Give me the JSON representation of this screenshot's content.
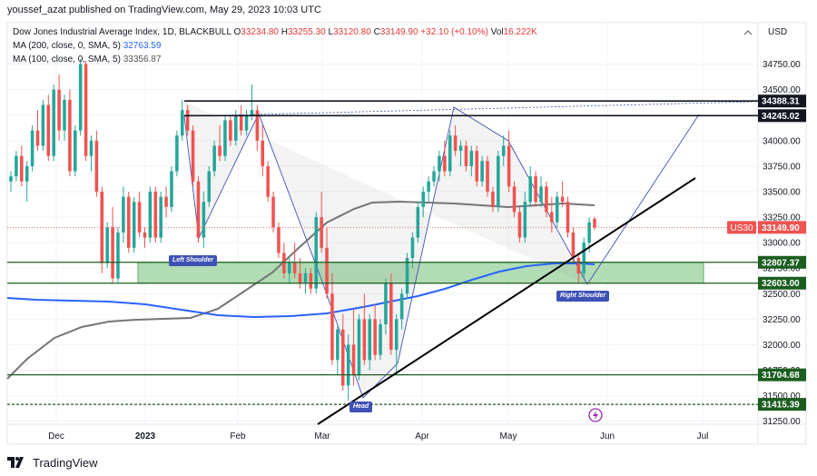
{
  "header": {
    "publisher": "youssef_azat published on TradingView.com, May 29, 2023 10:03 UTC"
  },
  "legend": {
    "symbol_line": "Dow Jones Industrial Average Index, 1D, BLACKBULL",
    "open_label": "O",
    "open": "33234.80",
    "high_label": "H",
    "high": "33255.30",
    "low_label": "L",
    "low": "33120.80",
    "close_label": "C",
    "close": "33149.90",
    "change": "+32.10 (+0.10%)",
    "vol_label": "Vol",
    "vol": "16.222K",
    "ma200_label": "MA (200, close, 0, SMA, 5)",
    "ma200_value": "32763.59",
    "ma100_label": "MA (100, close, 0, SMA, 5)",
    "ma100_value": "33356.87"
  },
  "currency": "USD",
  "footer": {
    "brand": "TradingView",
    "logo_icon": "tradingview-logo-icon"
  },
  "colors": {
    "up": "#26a69a",
    "down": "#ef5350",
    "ma200": "#2962ff",
    "ma100": "#757575",
    "zone": "#a5d6a7",
    "pattern": "#3f51b5",
    "hline": "#1b5e20"
  },
  "chart_data": {
    "type": "candlestick",
    "title": "Dow Jones Industrial Average Index, 1D, BLACKBULL",
    "ylabel": "USD",
    "ylim": [
      31250,
      34900
    ],
    "x_ticks": [
      "Dec",
      "2023",
      "Feb",
      "Mar",
      "Apr",
      "May",
      "Jun",
      "Jul"
    ],
    "y_ticks": [
      31250,
      31500,
      31750,
      32000,
      32250,
      32500,
      32750,
      33000,
      33250,
      33500,
      33750,
      34000,
      34250,
      34500,
      34750
    ],
    "price_labels": [
      {
        "value": "34388.31",
        "style": "black"
      },
      {
        "value": "34245.02",
        "style": "black"
      },
      {
        "value": "33149.90",
        "style": "current",
        "tag": "US30"
      },
      {
        "value": "32807.37",
        "style": "green"
      },
      {
        "value": "32603.00",
        "style": "green"
      },
      {
        "value": "31704.68",
        "style": "green"
      },
      {
        "value": "31415.39",
        "style": "green"
      }
    ],
    "annotations": [
      "Left Shoulder",
      "Head",
      "Right Shoulder"
    ],
    "candles": [
      {
        "o": 33600,
        "h": 33700,
        "l": 33500,
        "c": 33650
      },
      {
        "o": 33650,
        "h": 33900,
        "l": 33600,
        "c": 33850
      },
      {
        "o": 33850,
        "h": 33950,
        "l": 33550,
        "c": 33600
      },
      {
        "o": 33600,
        "h": 33800,
        "l": 33400,
        "c": 33750
      },
      {
        "o": 33750,
        "h": 34150,
        "l": 33700,
        "c": 34100
      },
      {
        "o": 34100,
        "h": 34300,
        "l": 33900,
        "c": 33950
      },
      {
        "o": 33950,
        "h": 34400,
        "l": 33900,
        "c": 34350
      },
      {
        "o": 34350,
        "h": 34450,
        "l": 33800,
        "c": 33850
      },
      {
        "o": 33850,
        "h": 34550,
        "l": 33800,
        "c": 34500
      },
      {
        "o": 34500,
        "h": 34650,
        "l": 34000,
        "c": 34100
      },
      {
        "o": 34100,
        "h": 34450,
        "l": 34000,
        "c": 34400
      },
      {
        "o": 34400,
        "h": 34500,
        "l": 33650,
        "c": 33700
      },
      {
        "o": 33700,
        "h": 34150,
        "l": 33650,
        "c": 34100
      },
      {
        "o": 34100,
        "h": 34800,
        "l": 34050,
        "c": 34750
      },
      {
        "o": 34750,
        "h": 34780,
        "l": 33800,
        "c": 33850
      },
      {
        "o": 33850,
        "h": 34050,
        "l": 33700,
        "c": 34000
      },
      {
        "o": 34000,
        "h": 34100,
        "l": 33450,
        "c": 33500
      },
      {
        "o": 33500,
        "h": 33550,
        "l": 32700,
        "c": 32800
      },
      {
        "o": 32800,
        "h": 33200,
        "l": 32750,
        "c": 33150
      },
      {
        "o": 33150,
        "h": 33350,
        "l": 32600,
        "c": 32650
      },
      {
        "o": 32650,
        "h": 33150,
        "l": 32600,
        "c": 33100
      },
      {
        "o": 33100,
        "h": 33550,
        "l": 33000,
        "c": 33450
      },
      {
        "o": 33450,
        "h": 33500,
        "l": 32900,
        "c": 32950
      },
      {
        "o": 32950,
        "h": 33450,
        "l": 32900,
        "c": 33400
      },
      {
        "o": 33400,
        "h": 33500,
        "l": 33050,
        "c": 33100
      },
      {
        "o": 33100,
        "h": 33150,
        "l": 32950,
        "c": 33050
      },
      {
        "o": 33050,
        "h": 33550,
        "l": 33000,
        "c": 33500
      },
      {
        "o": 33500,
        "h": 33550,
        "l": 33000,
        "c": 33050
      },
      {
        "o": 33050,
        "h": 33500,
        "l": 33000,
        "c": 33450
      },
      {
        "o": 33450,
        "h": 33550,
        "l": 33250,
        "c": 33350
      },
      {
        "o": 33350,
        "h": 33750,
        "l": 33300,
        "c": 33700
      },
      {
        "o": 33700,
        "h": 34100,
        "l": 33650,
        "c": 34050
      },
      {
        "o": 34050,
        "h": 34400,
        "l": 34000,
        "c": 34300
      },
      {
        "o": 34300,
        "h": 34350,
        "l": 34050,
        "c": 34100
      },
      {
        "o": 34100,
        "h": 34150,
        "l": 33550,
        "c": 33600
      },
      {
        "o": 33600,
        "h": 33650,
        "l": 33000,
        "c": 33050
      },
      {
        "o": 33050,
        "h": 33500,
        "l": 32950,
        "c": 33400
      },
      {
        "o": 33400,
        "h": 33750,
        "l": 33350,
        "c": 33700
      },
      {
        "o": 33700,
        "h": 34000,
        "l": 33650,
        "c": 33950
      },
      {
        "o": 33950,
        "h": 34150,
        "l": 33800,
        "c": 33850
      },
      {
        "o": 33850,
        "h": 34250,
        "l": 33800,
        "c": 34200
      },
      {
        "o": 34200,
        "h": 34250,
        "l": 33950,
        "c": 34000
      },
      {
        "o": 34000,
        "h": 34300,
        "l": 33950,
        "c": 34250
      },
      {
        "o": 34250,
        "h": 34350,
        "l": 34050,
        "c": 34100
      },
      {
        "o": 34100,
        "h": 34300,
        "l": 34050,
        "c": 34250
      },
      {
        "o": 34250,
        "h": 34550,
        "l": 34200,
        "c": 34300
      },
      {
        "o": 34300,
        "h": 34350,
        "l": 33900,
        "c": 34000
      },
      {
        "o": 34000,
        "h": 34150,
        "l": 33650,
        "c": 33750
      },
      {
        "o": 33750,
        "h": 33800,
        "l": 33400,
        "c": 33450
      },
      {
        "o": 33450,
        "h": 33500,
        "l": 33100,
        "c": 33150
      },
      {
        "o": 33150,
        "h": 33200,
        "l": 32850,
        "c": 32900
      },
      {
        "o": 32900,
        "h": 33000,
        "l": 32650,
        "c": 32700
      },
      {
        "o": 32700,
        "h": 32850,
        "l": 32600,
        "c": 32800
      },
      {
        "o": 32800,
        "h": 33000,
        "l": 32650,
        "c": 32700
      },
      {
        "o": 32700,
        "h": 32850,
        "l": 32550,
        "c": 32600
      },
      {
        "o": 32600,
        "h": 32750,
        "l": 32500,
        "c": 32700
      },
      {
        "o": 32700,
        "h": 32750,
        "l": 32500,
        "c": 32550
      },
      {
        "o": 32550,
        "h": 33300,
        "l": 32500,
        "c": 33250
      },
      {
        "o": 33250,
        "h": 33500,
        "l": 32900,
        "c": 32950
      },
      {
        "o": 32950,
        "h": 33150,
        "l": 32450,
        "c": 32500
      },
      {
        "o": 32500,
        "h": 32700,
        "l": 31800,
        "c": 31850
      },
      {
        "o": 31850,
        "h": 32200,
        "l": 31700,
        "c": 32150
      },
      {
        "o": 32150,
        "h": 32300,
        "l": 31550,
        "c": 31600
      },
      {
        "o": 31600,
        "h": 32100,
        "l": 31450,
        "c": 32000
      },
      {
        "o": 32000,
        "h": 32350,
        "l": 31600,
        "c": 31700
      },
      {
        "o": 31700,
        "h": 32300,
        "l": 31650,
        "c": 32250
      },
      {
        "o": 32250,
        "h": 32500,
        "l": 31800,
        "c": 31850
      },
      {
        "o": 31850,
        "h": 32300,
        "l": 31750,
        "c": 32250
      },
      {
        "o": 32250,
        "h": 32400,
        "l": 31850,
        "c": 31900
      },
      {
        "o": 31900,
        "h": 32250,
        "l": 31850,
        "c": 32200
      },
      {
        "o": 32200,
        "h": 32650,
        "l": 32100,
        "c": 32600
      },
      {
        "o": 32600,
        "h": 32700,
        "l": 31900,
        "c": 31950
      },
      {
        "o": 31950,
        "h": 32300,
        "l": 31700,
        "c": 32250
      },
      {
        "o": 32250,
        "h": 32550,
        "l": 32150,
        "c": 32500
      },
      {
        "o": 32500,
        "h": 32900,
        "l": 32450,
        "c": 32850
      },
      {
        "o": 32850,
        "h": 33100,
        "l": 32750,
        "c": 33050
      },
      {
        "o": 33050,
        "h": 33400,
        "l": 33000,
        "c": 33350
      },
      {
        "o": 33350,
        "h": 33550,
        "l": 33250,
        "c": 33500
      },
      {
        "o": 33500,
        "h": 33650,
        "l": 33400,
        "c": 33600
      },
      {
        "o": 33600,
        "h": 33750,
        "l": 33550,
        "c": 33700
      },
      {
        "o": 33700,
        "h": 33900,
        "l": 33600,
        "c": 33850
      },
      {
        "o": 33850,
        "h": 34000,
        "l": 33650,
        "c": 33700
      },
      {
        "o": 33700,
        "h": 34100,
        "l": 33650,
        "c": 34050
      },
      {
        "o": 34050,
        "h": 34150,
        "l": 33850,
        "c": 33900
      },
      {
        "o": 33900,
        "h": 34000,
        "l": 33750,
        "c": 33950
      },
      {
        "o": 33950,
        "h": 34000,
        "l": 33700,
        "c": 33750
      },
      {
        "o": 33750,
        "h": 33950,
        "l": 33650,
        "c": 33900
      },
      {
        "o": 33900,
        "h": 33950,
        "l": 33550,
        "c": 33600
      },
      {
        "o": 33600,
        "h": 33850,
        "l": 33550,
        "c": 33800
      },
      {
        "o": 33800,
        "h": 33850,
        "l": 33450,
        "c": 33500
      },
      {
        "o": 33500,
        "h": 33550,
        "l": 33300,
        "c": 33350
      },
      {
        "o": 33350,
        "h": 33900,
        "l": 33300,
        "c": 33850
      },
      {
        "o": 33850,
        "h": 34050,
        "l": 33750,
        "c": 33950
      },
      {
        "o": 33950,
        "h": 34100,
        "l": 33500,
        "c": 33550
      },
      {
        "o": 33550,
        "h": 33600,
        "l": 33250,
        "c": 33300
      },
      {
        "o": 33300,
        "h": 33350,
        "l": 33000,
        "c": 33050
      },
      {
        "o": 33050,
        "h": 33500,
        "l": 33000,
        "c": 33400
      },
      {
        "o": 33400,
        "h": 33750,
        "l": 33350,
        "c": 33650
      },
      {
        "o": 33650,
        "h": 33700,
        "l": 33350,
        "c": 33400
      },
      {
        "o": 33400,
        "h": 33650,
        "l": 33350,
        "c": 33550
      },
      {
        "o": 33550,
        "h": 33600,
        "l": 33250,
        "c": 33300
      },
      {
        "o": 33300,
        "h": 33450,
        "l": 33100,
        "c": 33200
      },
      {
        "o": 33200,
        "h": 33500,
        "l": 33150,
        "c": 33450
      },
      {
        "o": 33450,
        "h": 33600,
        "l": 33350,
        "c": 33400
      },
      {
        "o": 33400,
        "h": 33450,
        "l": 33050,
        "c": 33100
      },
      {
        "o": 33100,
        "h": 33150,
        "l": 32800,
        "c": 32850
      },
      {
        "o": 32850,
        "h": 32900,
        "l": 32600,
        "c": 32700
      },
      {
        "o": 32700,
        "h": 33050,
        "l": 32650,
        "c": 33000
      },
      {
        "o": 33000,
        "h": 33250,
        "l": 32900,
        "c": 33200
      },
      {
        "o": 33234.8,
        "h": 33255.3,
        "l": 33120.8,
        "c": 33149.9
      }
    ]
  }
}
